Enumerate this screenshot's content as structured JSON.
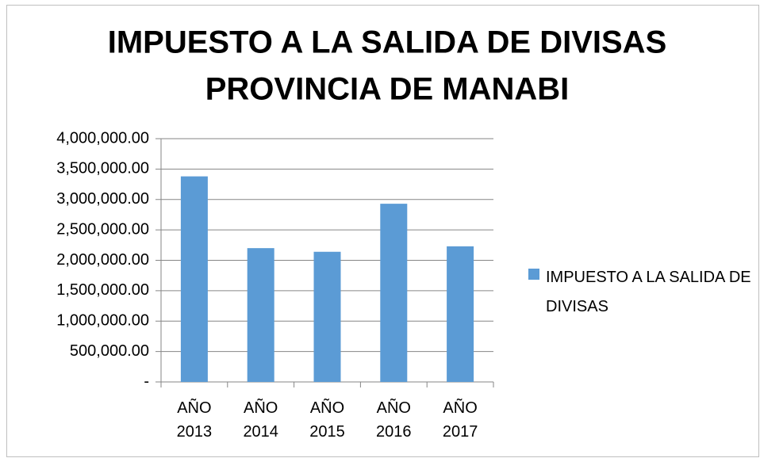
{
  "chart_data": {
    "type": "bar",
    "title": "IMPUESTO A LA SALIDA DE DIVISAS",
    "subtitle": "PROVINCIA DE MANABI",
    "categories": [
      "AÑO 2013",
      "AÑO 2014",
      "AÑO 2015",
      "AÑO 2016",
      "AÑO 2017"
    ],
    "series": [
      {
        "name": "IMPUESTO A LA SALIDA DE DIVISAS",
        "color": "#5b9bd5",
        "values": [
          3380000,
          2200000,
          2140000,
          2930000,
          2230000
        ]
      }
    ],
    "ylim": [
      0,
      4000000
    ],
    "yticks": [
      {
        "value": 0,
        "label": "-"
      },
      {
        "value": 500000,
        "label": "500,000.00"
      },
      {
        "value": 1000000,
        "label": "1,000,000.00"
      },
      {
        "value": 1500000,
        "label": "1,500,000.00"
      },
      {
        "value": 2000000,
        "label": "2,000,000.00"
      },
      {
        "value": 2500000,
        "label": "2,500,000.00"
      },
      {
        "value": 3000000,
        "label": "3,000,000.00"
      },
      {
        "value": 3500000,
        "label": "3,500,000.00"
      },
      {
        "value": 4000000,
        "label": "4,000,000.00"
      }
    ],
    "grid": true,
    "legend": "right"
  }
}
